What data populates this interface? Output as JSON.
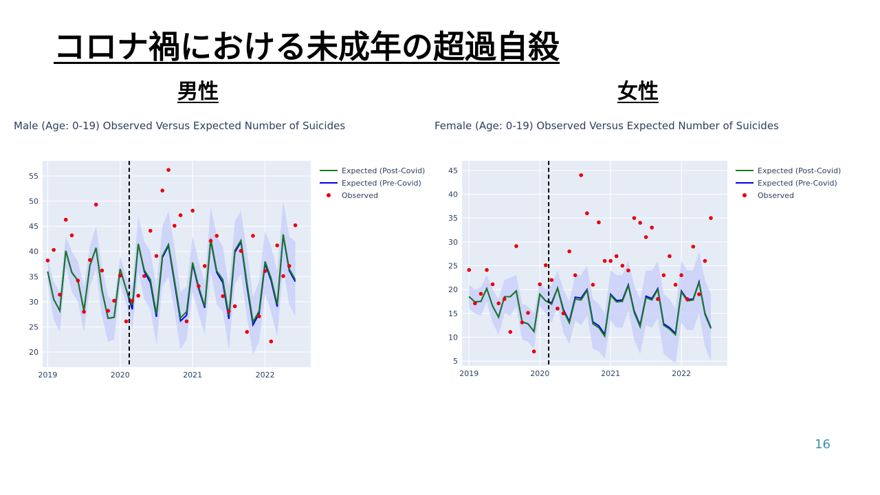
{
  "slide": {
    "title": "コロナ禍における未成年の超過自殺",
    "left_heading": "男性",
    "right_heading": "女性",
    "page_number": "16"
  },
  "colors": {
    "post_covid": "#1a7a1a",
    "pre_covid": "#0000ee",
    "observed": "#e8000b",
    "band": "#c5cdf9",
    "plot_bg": "#e5ecf6",
    "grid": "#ffffff",
    "text": "#2a3f5f"
  },
  "chart_data": [
    {
      "type": "line",
      "title": "Male (Age: 0-19) Observed Versus Expected Number of Suicides",
      "xlabel": "",
      "ylabel": "",
      "xlim": [
        2018.93,
        2022.63
      ],
      "ylim": [
        17,
        58
      ],
      "yticks": [
        20,
        25,
        30,
        35,
        40,
        45,
        50,
        55
      ],
      "xticks": [
        2019,
        2020,
        2021,
        2022
      ],
      "vline": 2020.125,
      "legend_position": "top-right",
      "legend": [
        "Expected (Post-Covid)",
        "Expected (Pre-Covid)",
        "Observed"
      ],
      "x": [
        2019.0,
        2019.083,
        2019.167,
        2019.25,
        2019.333,
        2019.417,
        2019.5,
        2019.583,
        2019.667,
        2019.75,
        2019.833,
        2019.917,
        2020.0,
        2020.083,
        2020.167,
        2020.25,
        2020.333,
        2020.417,
        2020.5,
        2020.583,
        2020.667,
        2020.75,
        2020.833,
        2020.917,
        2021.0,
        2021.083,
        2021.167,
        2021.25,
        2021.333,
        2021.417,
        2021.5,
        2021.583,
        2021.667,
        2021.75,
        2021.833,
        2021.917,
        2022.0,
        2022.083,
        2022.167,
        2022.25,
        2022.333,
        2022.417
      ],
      "series": [
        {
          "name": "Expected (Post-Covid)",
          "values": [
            36,
            30.5,
            28.2,
            40.1,
            35.8,
            34.2,
            28.2,
            37.2,
            40.7,
            32.2,
            26.7,
            26.9,
            36.5,
            32.5,
            29.2,
            41.5,
            36.3,
            34.4,
            27.5,
            39.1,
            41.4,
            34.3,
            26.8,
            28.0,
            37.8,
            33.0,
            29.1,
            42.5,
            36.1,
            34.4,
            27.3,
            40.2,
            42.2,
            33.7,
            26.0,
            28.1,
            38.0,
            34.7,
            29.5,
            43.4,
            36.5,
            34.4
          ]
        },
        {
          "name": "Expected (Pre-Covid)",
          "values": [
            36,
            30.5,
            28.2,
            40.1,
            35.8,
            34.2,
            28.2,
            37.2,
            40.7,
            32.2,
            26.7,
            26.9,
            36.5,
            32.5,
            28.5,
            41.5,
            36.0,
            33.8,
            27.0,
            38.8,
            41.1,
            33.8,
            26.2,
            27.3,
            37.5,
            32.6,
            28.8,
            42.2,
            35.8,
            33.8,
            26.6,
            39.8,
            41.9,
            33.1,
            25.4,
            27.6,
            37.6,
            34.2,
            29.0,
            43.2,
            36.2,
            34.0
          ]
        },
        {
          "name": "band_upper",
          "values": [
            38.5,
            34,
            32,
            43,
            40,
            38,
            33,
            41,
            45,
            37,
            31,
            30,
            39,
            35,
            33,
            47,
            42,
            40,
            33,
            45,
            48,
            41,
            32,
            33,
            43,
            38,
            34,
            49,
            43,
            41,
            33,
            46,
            48,
            40,
            31,
            34,
            44,
            41,
            36,
            50,
            43,
            42
          ]
        },
        {
          "name": "band_lower",
          "values": [
            33.5,
            26.5,
            24,
            37,
            32,
            30,
            24,
            33,
            36.5,
            27,
            22,
            22.5,
            33.5,
            29.5,
            24.5,
            36,
            30.5,
            28.5,
            21.5,
            33,
            35,
            28,
            20.5,
            22.5,
            32,
            27.5,
            23.5,
            36,
            29.5,
            28,
            20.5,
            33.5,
            35.5,
            27,
            19.5,
            22,
            31.5,
            28,
            23,
            36.5,
            29.5,
            27
          ]
        },
        {
          "name": "Observed",
          "values": [
            38.2,
            40.3,
            31.4,
            46.3,
            43.2,
            34.2,
            28.0,
            38.3,
            49.3,
            36.2,
            28.2,
            30.2,
            35.2,
            26.1,
            30.2,
            31.2,
            35.1,
            44.1,
            39.1,
            52.1,
            56.2,
            45.1,
            47.2,
            26.1,
            48.1,
            33.1,
            37.1,
            42.1,
            43.1,
            31.1,
            28.1,
            29.1,
            40.1,
            24.0,
            43.1,
            27.1,
            36.1,
            22.1,
            41.2,
            35.1,
            37.1,
            45.2
          ]
        }
      ]
    },
    {
      "type": "line",
      "title": "Female (Age: 0-19) Observed Versus Expected Number of Suicides",
      "xlabel": "",
      "ylabel": "",
      "xlim": [
        2018.9,
        2022.65
      ],
      "ylim": [
        4,
        47
      ],
      "yticks": [
        5,
        10,
        15,
        20,
        25,
        30,
        35,
        40,
        45
      ],
      "xticks": [
        2019,
        2020,
        2021,
        2022
      ],
      "vline": 2020.125,
      "legend_position": "top-right",
      "legend": [
        "Expected (Post-Covid)",
        "Expected (Pre-Covid)",
        "Observed"
      ],
      "x": [
        2019.0,
        2019.083,
        2019.167,
        2019.25,
        2019.333,
        2019.417,
        2019.5,
        2019.583,
        2019.667,
        2019.75,
        2019.833,
        2019.917,
        2020.0,
        2020.083,
        2020.167,
        2020.25,
        2020.333,
        2020.417,
        2020.5,
        2020.583,
        2020.667,
        2020.75,
        2020.833,
        2020.917,
        2021.0,
        2021.083,
        2021.167,
        2021.25,
        2021.333,
        2021.417,
        2021.5,
        2021.583,
        2021.667,
        2021.75,
        2021.833,
        2021.917,
        2022.0,
        2022.083,
        2022.167,
        2022.25,
        2022.333,
        2022.417
      ],
      "series": [
        {
          "name": "Expected (Post-Covid)",
          "values": [
            18.5,
            17.4,
            17.5,
            20.2,
            16.5,
            14.2,
            18.5,
            18.5,
            19.7,
            13.2,
            12.8,
            11.2,
            19.0,
            17.6,
            16.9,
            20.3,
            15.5,
            13.0,
            18.0,
            17.8,
            19.8,
            12.8,
            12.0,
            10.2,
            18.8,
            17.4,
            17.5,
            20.8,
            15.2,
            12.2,
            18.3,
            17.8,
            20.0,
            12.5,
            11.7,
            10.5,
            19.5,
            17.6,
            17.8,
            21.5,
            14.8,
            11.8
          ]
        },
        {
          "name": "Expected (Pre-Covid)",
          "values": [
            18.5,
            17.4,
            17.5,
            20.2,
            16.5,
            14.2,
            18.5,
            18.5,
            19.7,
            13.2,
            12.8,
            11.2,
            19.0,
            17.6,
            17.2,
            20.3,
            15.8,
            13.3,
            18.4,
            18.2,
            20.0,
            13.2,
            12.4,
            10.6,
            19.0,
            17.7,
            17.8,
            21.0,
            15.5,
            12.5,
            18.6,
            18.1,
            20.2,
            12.8,
            12.0,
            10.8,
            19.7,
            17.9,
            18.0,
            21.6,
            15.0,
            12.0
          ]
        },
        {
          "name": "band_upper",
          "values": [
            21,
            20,
            20.5,
            23,
            20,
            18,
            22,
            22.5,
            23,
            17,
            16.5,
            15,
            21.5,
            20,
            21,
            24,
            20,
            17.5,
            23,
            23,
            25,
            18,
            17,
            15,
            24,
            23,
            23,
            26,
            21,
            18,
            24,
            24,
            26,
            19,
            18,
            16,
            26,
            24,
            24,
            28,
            22,
            19
          ]
        },
        {
          "name": "band_lower",
          "values": [
            16,
            15,
            14.5,
            17.5,
            13,
            10.5,
            15,
            14.5,
            16.5,
            9.5,
            9,
            7.5,
            16.5,
            15,
            13,
            16.5,
            11,
            8.5,
            13.5,
            12.5,
            14.5,
            7.5,
            7,
            5.5,
            13.5,
            12,
            12,
            15.5,
            9.5,
            6.5,
            12.5,
            12,
            14,
            6.5,
            5.5,
            4.5,
            13,
            11.5,
            11.5,
            15,
            8,
            5
          ]
        },
        {
          "name": "Observed",
          "values": [
            24.1,
            17.1,
            19.1,
            24.1,
            21.1,
            17.1,
            18.0,
            11.1,
            29.1,
            13.1,
            15.1,
            7.0,
            21.1,
            25.1,
            22.0,
            16.0,
            15.0,
            28.0,
            23.0,
            44.0,
            36.0,
            21.0,
            34.1,
            26.0,
            26.0,
            27.0,
            25.0,
            24.0,
            35.0,
            34.0,
            31.0,
            33.0,
            18.0,
            23.0,
            27.0,
            21.0,
            23.0,
            18.0,
            29.0,
            19.0,
            26.0,
            35.0
          ]
        }
      ]
    }
  ]
}
